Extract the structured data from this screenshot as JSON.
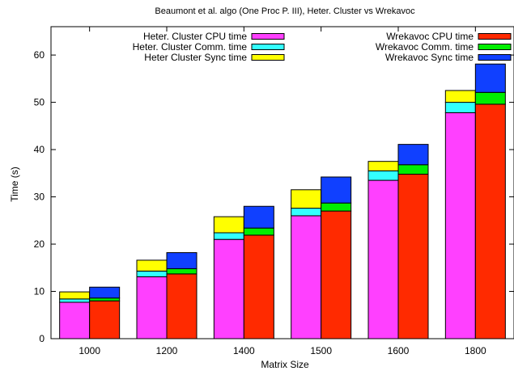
{
  "chart_data": {
    "type": "bar",
    "title": "Beaumont et al. algo (One Proc P. III), Heter. Cluster vs Wrekavoc",
    "xlabel": "Matrix Size",
    "ylabel": "Time (s)",
    "ylim": [
      0,
      66
    ],
    "yticks": [
      0,
      10,
      20,
      30,
      40,
      50,
      60
    ],
    "categories": [
      "1000",
      "1200",
      "1400",
      "1500",
      "1600",
      "1800"
    ],
    "legend_placement": "top",
    "groups": [
      {
        "name": "Heter. Cluster",
        "series": [
          {
            "name": "Heter. Cluster CPU time",
            "color": "#ff40ff",
            "values": [
              7.7,
              13.1,
              21.0,
              26.0,
              33.5,
              47.8
            ]
          },
          {
            "name": "Heter. Cluster Comm. time",
            "color": "#33ffff",
            "values": [
              0.7,
              1.2,
              1.4,
              1.6,
              2.0,
              2.2
            ]
          },
          {
            "name": "Heter Cluster Sync time",
            "color": "#ffff00",
            "values": [
              1.5,
              2.3,
              3.4,
              3.9,
              2.0,
              2.5
            ]
          }
        ]
      },
      {
        "name": "Wrekavoc",
        "series": [
          {
            "name": "Wrekavoc CPU time",
            "color": "#ff2a00",
            "values": [
              8.0,
              13.7,
              21.9,
              27.0,
              34.8,
              49.6
            ]
          },
          {
            "name": "Wrekavoc Comm. time",
            "color": "#00ee00",
            "values": [
              0.6,
              1.1,
              1.5,
              1.7,
              2.0,
              2.5
            ]
          },
          {
            "name": "Wrekavoc Sync time",
            "color": "#1040ff",
            "values": [
              2.3,
              3.4,
              4.6,
              5.5,
              4.3,
              6.0
            ]
          }
        ]
      }
    ]
  }
}
